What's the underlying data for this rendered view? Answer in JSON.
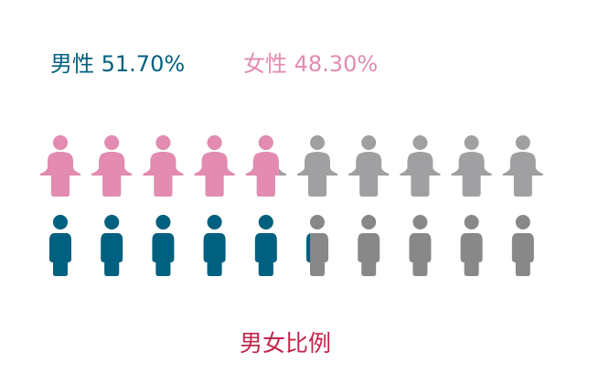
{
  "chart_data": {
    "type": "pictogram",
    "title": "男女比例",
    "icons_per_row": 10,
    "series": [
      {
        "name": "女性",
        "value_text": "48.30%",
        "value": 48.3,
        "color": "#e38bb1",
        "empty_color": "#a0a0a2",
        "icon": "female-person-icon"
      },
      {
        "name": "男性",
        "value_text": "51.70%",
        "value": 51.7,
        "color": "#00607f",
        "empty_color": "#888888",
        "icon": "male-person-icon"
      }
    ]
  },
  "legend": {
    "male": "男性 51.70%",
    "female": "女性 48.30%"
  }
}
